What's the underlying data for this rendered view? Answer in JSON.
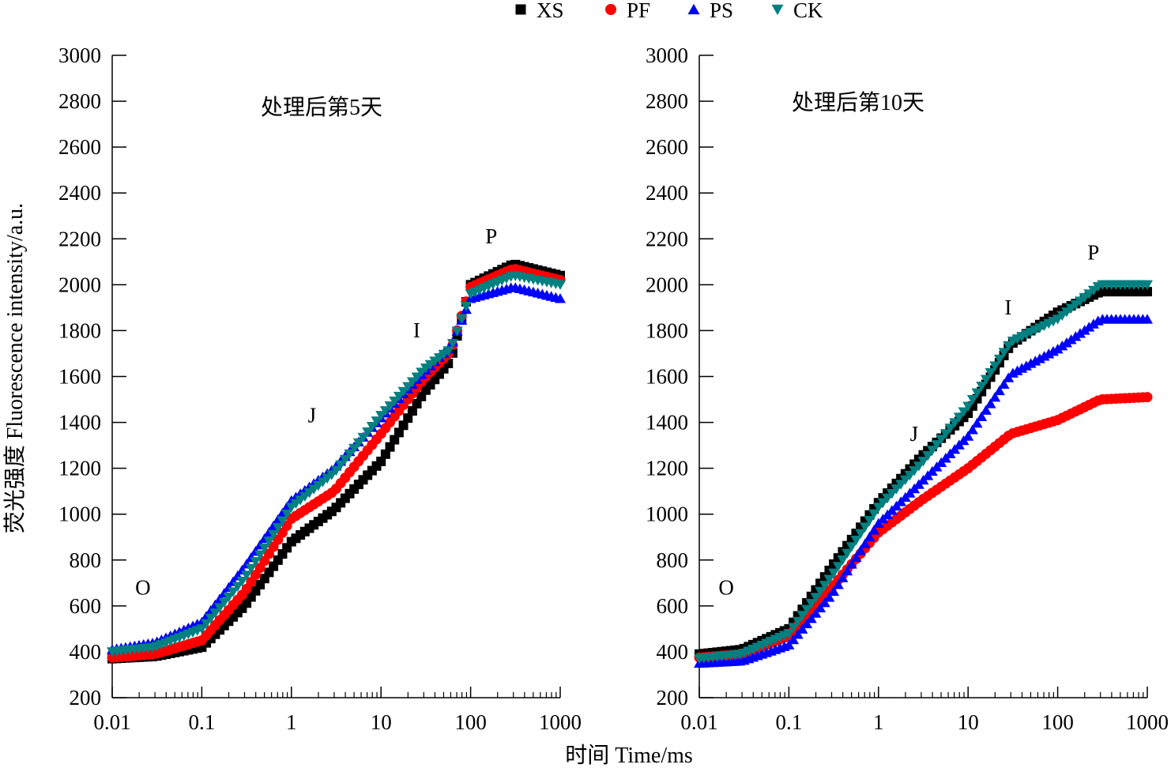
{
  "axis": {
    "xlabel": "时间 Time/ms",
    "ylabel": "荧光强度 Fluorescence intensity/a.u."
  },
  "legend": {
    "placement": "top-center",
    "items": [
      {
        "name": "XS",
        "marker": "square",
        "color": "#000000"
      },
      {
        "name": "PF",
        "marker": "circle",
        "color": "#ff0000"
      },
      {
        "name": "PS",
        "marker": "triangle-up",
        "color": "#0000ff"
      },
      {
        "name": "CK",
        "marker": "triangle-down",
        "color": "#008080"
      }
    ]
  },
  "chart_data": [
    {
      "type": "scatter",
      "title": "处理后第5天",
      "x_scale": "log",
      "xlim": [
        0.01,
        1000
      ],
      "ylim": [
        200,
        3000
      ],
      "x_ticks": [
        "0.01",
        "0.1",
        "1",
        "10",
        "100",
        "1000"
      ],
      "y_ticks": [
        "200",
        "400",
        "600",
        "800",
        "1000",
        "1200",
        "1400",
        "1600",
        "1800",
        "2000",
        "2200",
        "2400",
        "2600",
        "2800",
        "3000"
      ],
      "grid": false,
      "annotations": [
        {
          "text": "O",
          "x": 0.022,
          "y": 650
        },
        {
          "text": "J",
          "x": 1.7,
          "y": 1400
        },
        {
          "text": "I",
          "x": 25,
          "y": 1770
        },
        {
          "text": "P",
          "x": 170,
          "y": 2180
        }
      ],
      "series": [
        {
          "name": "XS",
          "x": [
            0.01,
            0.03,
            0.1,
            0.3,
            1,
            3,
            10,
            30,
            60,
            100,
            300,
            1000
          ],
          "y": [
            370,
            380,
            420,
            600,
            880,
            1020,
            1230,
            1530,
            1670,
            2000,
            2090,
            2040
          ]
        },
        {
          "name": "PF",
          "x": [
            0.01,
            0.03,
            0.1,
            0.3,
            1,
            3,
            10,
            30,
            60,
            100,
            300,
            1000
          ],
          "y": [
            375,
            390,
            450,
            660,
            980,
            1100,
            1350,
            1590,
            1710,
            1990,
            2070,
            2020
          ]
        },
        {
          "name": "PS",
          "x": [
            0.01,
            0.03,
            0.1,
            0.3,
            1,
            3,
            10,
            30,
            60,
            100,
            300,
            1000
          ],
          "y": [
            410,
            440,
            530,
            770,
            1060,
            1200,
            1420,
            1620,
            1730,
            1940,
            1990,
            1940
          ]
        },
        {
          "name": "CK",
          "x": [
            0.01,
            0.03,
            0.1,
            0.3,
            1,
            3,
            10,
            30,
            60,
            100,
            300,
            1000
          ],
          "y": [
            400,
            420,
            500,
            720,
            1030,
            1180,
            1430,
            1630,
            1720,
            1960,
            2040,
            2000
          ]
        }
      ]
    },
    {
      "type": "scatter",
      "title": "处理后第10天",
      "x_scale": "log",
      "xlim": [
        0.01,
        1000
      ],
      "ylim": [
        200,
        3000
      ],
      "x_ticks": [
        "0.01",
        "0.1",
        "1",
        "10",
        "100",
        "1000"
      ],
      "y_ticks": [
        "200",
        "400",
        "600",
        "800",
        "1000",
        "1200",
        "1400",
        "1600",
        "1800",
        "2000",
        "2200",
        "2400",
        "2600",
        "2800",
        "3000"
      ],
      "grid": false,
      "annotations": [
        {
          "text": "O",
          "x": 0.02,
          "y": 650
        },
        {
          "text": "J",
          "x": 2.5,
          "y": 1320
        },
        {
          "text": "I",
          "x": 28,
          "y": 1870
        },
        {
          "text": "P",
          "x": 250,
          "y": 2110
        }
      ],
      "series": [
        {
          "name": "XS",
          "x": [
            0.01,
            0.03,
            0.1,
            0.3,
            1,
            3,
            10,
            30,
            100,
            300,
            1000
          ],
          "y": [
            390,
            410,
            500,
            770,
            1050,
            1250,
            1440,
            1740,
            1880,
            1970,
            1970
          ]
        },
        {
          "name": "PF",
          "x": [
            0.01,
            0.03,
            0.1,
            0.3,
            1,
            3,
            10,
            30,
            100,
            300,
            1000
          ],
          "y": [
            375,
            390,
            470,
            680,
            920,
            1060,
            1200,
            1350,
            1410,
            1500,
            1510
          ]
        },
        {
          "name": "PS",
          "x": [
            0.01,
            0.03,
            0.1,
            0.3,
            1,
            3,
            10,
            30,
            100,
            300,
            1000
          ],
          "y": [
            350,
            360,
            430,
            650,
            960,
            1140,
            1340,
            1610,
            1720,
            1850,
            1850
          ]
        },
        {
          "name": "CK",
          "x": [
            0.01,
            0.03,
            0.1,
            0.3,
            1,
            3,
            10,
            30,
            100,
            300,
            1000
          ],
          "y": [
            370,
            390,
            480,
            730,
            1030,
            1220,
            1470,
            1750,
            1850,
            2000,
            2000
          ]
        }
      ]
    }
  ]
}
